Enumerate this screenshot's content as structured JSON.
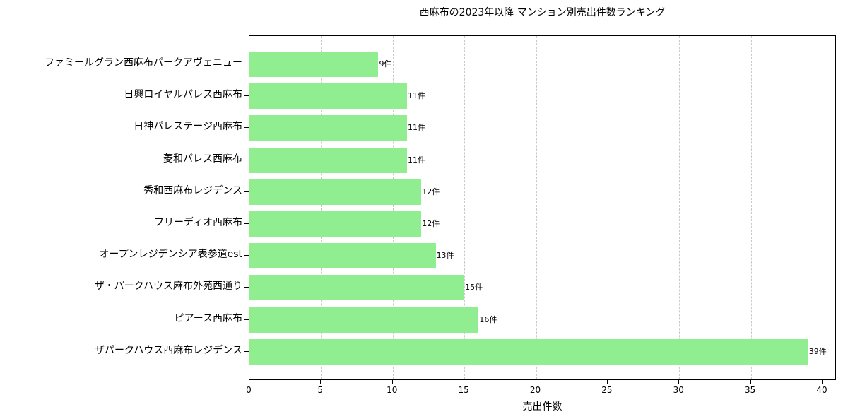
{
  "chart_data": {
    "type": "bar",
    "orientation": "horizontal",
    "title": "西麻布の2023年以降 マンション別売出件数ランキング",
    "xlabel": "売出件数",
    "ylabel": "",
    "xlim": [
      0,
      41
    ],
    "xticks": [
      0,
      5,
      10,
      15,
      20,
      25,
      30,
      35,
      40
    ],
    "grid": {
      "x": true,
      "style": "dashed"
    },
    "bar_color": "#90ee90",
    "categories": [
      "ファミールグラン西麻布パークアヴェニュー",
      "日興ロイヤルパレス西麻布",
      "日神パレステージ西麻布",
      "菱和パレス西麻布",
      "秀和西麻布レジデンス",
      "フリーディオ西麻布",
      "オープンレジデンシア表参道est",
      "ザ・パークハウス麻布外苑西通り",
      "ピアース西麻布",
      "ザパークハウス西麻布レジデンス"
    ],
    "values": [
      9,
      11,
      11,
      11,
      12,
      12,
      13,
      15,
      16,
      39
    ],
    "value_labels": [
      "9件",
      "11件",
      "11件",
      "11件",
      "12件",
      "12件",
      "13件",
      "15件",
      "16件",
      "39件"
    ]
  }
}
